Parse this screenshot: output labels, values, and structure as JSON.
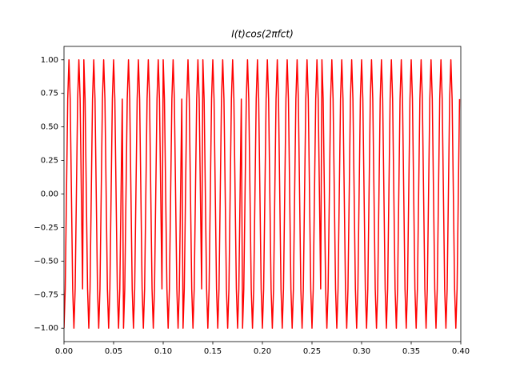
{
  "chart_data": {
    "type": "line",
    "title": "I(t)cos(2πfct)",
    "color": "#ff0000",
    "xlim": [
      0,
      0.4
    ],
    "ylim": [
      -1.1,
      1.1
    ],
    "xticks": [
      {
        "value": 0,
        "label": "0.00"
      },
      {
        "value": 0.05,
        "label": "0.05"
      },
      {
        "value": 0.1,
        "label": "0.10"
      },
      {
        "value": 0.15,
        "label": "0.15"
      },
      {
        "value": 0.2,
        "label": "0.20"
      },
      {
        "value": 0.25,
        "label": "0.25"
      },
      {
        "value": 0.3,
        "label": "0.30"
      },
      {
        "value": 0.35,
        "label": "0.35"
      },
      {
        "value": 0.4,
        "label": "0.40"
      }
    ],
    "yticks": [
      {
        "value": -1,
        "label": "−1.00"
      },
      {
        "value": -0.75,
        "label": "−0.75"
      },
      {
        "value": -0.5,
        "label": "−0.50"
      },
      {
        "value": -0.25,
        "label": "−0.25"
      },
      {
        "value": 0,
        "label": "0.00"
      },
      {
        "value": 0.25,
        "label": "0.25"
      },
      {
        "value": 0.5,
        "label": "0.50"
      },
      {
        "value": 0.75,
        "label": "0.75"
      },
      {
        "value": 1,
        "label": "1.00"
      }
    ],
    "x": [
      0,
      0.00125,
      0.0025,
      0.00375,
      0.005,
      0.00625,
      0.0075,
      0.00875,
      0.01,
      0.01125,
      0.0125,
      0.01375,
      0.015,
      0.01625,
      0.0175,
      0.01875,
      0.02,
      0.02125,
      0.0225,
      0.02375,
      0.025,
      0.02625,
      0.0275,
      0.02875,
      0.03,
      0.03125,
      0.0325,
      0.03375,
      0.035,
      0.03625,
      0.0375,
      0.03875,
      0.04,
      0.04125,
      0.0425,
      0.04375,
      0.045,
      0.04625,
      0.0475,
      0.04875,
      0.05,
      0.05125,
      0.0525,
      0.05375,
      0.055,
      0.05625,
      0.0575,
      0.05875,
      0.06,
      0.06125,
      0.0625,
      0.06375,
      0.065,
      0.06625,
      0.0675,
      0.06875,
      0.07,
      0.07125,
      0.0725,
      0.07375,
      0.075,
      0.07625,
      0.0775,
      0.07875,
      0.08,
      0.08125,
      0.0825,
      0.08375,
      0.085,
      0.08625,
      0.0875,
      0.08875,
      0.09,
      0.09125,
      0.0925,
      0.09375,
      0.095,
      0.09625,
      0.0975,
      0.09875,
      0.1,
      0.10125,
      0.1025,
      0.10375,
      0.105,
      0.10625,
      0.1075,
      0.10875,
      0.11,
      0.11125,
      0.1125,
      0.11375,
      0.115,
      0.11625,
      0.1175,
      0.11875,
      0.12,
      0.12125,
      0.1225,
      0.12375,
      0.125,
      0.12625,
      0.1275,
      0.12875,
      0.13,
      0.13125,
      0.1325,
      0.13375,
      0.135,
      0.13625,
      0.1375,
      0.13875,
      0.14,
      0.14125,
      0.1425,
      0.14375,
      0.145,
      0.14625,
      0.1475,
      0.14875,
      0.15,
      0.15125,
      0.1525,
      0.15375,
      0.155,
      0.15625,
      0.1575,
      0.15875,
      0.16,
      0.16125,
      0.1625,
      0.16375,
      0.165,
      0.16625,
      0.1675,
      0.16875,
      0.17,
      0.17125,
      0.1725,
      0.17375,
      0.175,
      0.17625,
      0.1775,
      0.17875,
      0.18,
      0.18125,
      0.1825,
      0.18375,
      0.185,
      0.18625,
      0.1875,
      0.18875,
      0.19,
      0.19125,
      0.1925,
      0.19375,
      0.195,
      0.19625,
      0.1975,
      0.19875,
      0.2,
      0.20125,
      0.2025,
      0.20375,
      0.205,
      0.20625,
      0.2075,
      0.20875,
      0.21,
      0.21125,
      0.2125,
      0.21375,
      0.215,
      0.21625,
      0.2175,
      0.21875,
      0.22,
      0.22125,
      0.2225,
      0.22375,
      0.225,
      0.22625,
      0.2275,
      0.22875,
      0.23,
      0.23125,
      0.2325,
      0.23375,
      0.235,
      0.23625,
      0.2375,
      0.23875,
      0.24,
      0.24125,
      0.2425,
      0.24375,
      0.245,
      0.24625,
      0.2475,
      0.24875,
      0.25,
      0.25125,
      0.2525,
      0.25375,
      0.255,
      0.25625,
      0.2575,
      0.25875,
      0.26,
      0.26125,
      0.2625,
      0.26375,
      0.265,
      0.26625,
      0.2675,
      0.26875,
      0.27,
      0.27125,
      0.2725,
      0.27375,
      0.275,
      0.27625,
      0.2775,
      0.27875,
      0.28,
      0.28125,
      0.2825,
      0.28375,
      0.285,
      0.28625,
      0.2875,
      0.28875,
      0.29,
      0.29125,
      0.2925,
      0.29375,
      0.295,
      0.29625,
      0.2975,
      0.29875,
      0.3,
      0.30125,
      0.3025,
      0.30375,
      0.305,
      0.30625,
      0.3075,
      0.30875,
      0.31,
      0.31125,
      0.3125,
      0.31375,
      0.315,
      0.31625,
      0.3175,
      0.31875,
      0.32,
      0.32125,
      0.3225,
      0.32375,
      0.325,
      0.32625,
      0.3275,
      0.32875,
      0.33,
      0.33125,
      0.3325,
      0.33375,
      0.335,
      0.33625,
      0.3375,
      0.33875,
      0.34,
      0.34125,
      0.3425,
      0.34375,
      0.345,
      0.34625,
      0.3475,
      0.34875,
      0.35,
      0.35125,
      0.3525,
      0.35375,
      0.355,
      0.35625,
      0.3575,
      0.35875,
      0.36,
      0.36125,
      0.3625,
      0.36375,
      0.365,
      0.36625,
      0.3675,
      0.36875,
      0.37,
      0.37125,
      0.3725,
      0.37375,
      0.375,
      0.37625,
      0.3775,
      0.37875,
      0.38,
      0.38125,
      0.3825,
      0.38375,
      0.385,
      0.38625,
      0.3875,
      0.38875,
      0.39,
      0.39125,
      0.3925,
      0.39375,
      0.395,
      0.39625,
      0.3975,
      0.39875
    ],
    "values": [
      -1,
      -0.707,
      0,
      0.707,
      1,
      0.707,
      0,
      -0.707,
      -1,
      -0.707,
      0,
      0.707,
      1,
      0.707,
      0,
      -0.707,
      1,
      0.707,
      0,
      -0.707,
      -1,
      -0.707,
      0,
      0.707,
      1,
      0.707,
      0,
      -0.707,
      -1,
      -0.707,
      0,
      0.707,
      1,
      0.707,
      0,
      -0.707,
      -1,
      -0.707,
      0,
      0.707,
      1,
      0.707,
      0,
      -0.707,
      -1,
      -0.707,
      0,
      0.707,
      -1,
      -0.707,
      0,
      0.707,
      1,
      0.707,
      0,
      -0.707,
      -1,
      -0.707,
      0,
      0.707,
      1,
      0.707,
      0,
      -0.707,
      -1,
      -0.707,
      0,
      0.707,
      1,
      0.707,
      0,
      -0.707,
      -1,
      -0.707,
      0,
      0.707,
      1,
      0.707,
      0,
      -0.707,
      1,
      0.707,
      0,
      -0.707,
      -1,
      -0.707,
      0,
      0.707,
      1,
      0.707,
      0,
      -0.707,
      -1,
      -0.707,
      0,
      0.707,
      -1,
      -0.707,
      0,
      0.707,
      1,
      0.707,
      0,
      -0.707,
      -1,
      -0.707,
      0,
      0.707,
      1,
      0.707,
      0,
      -0.707,
      1,
      0.707,
      0,
      -0.707,
      -1,
      -0.707,
      0,
      0.707,
      1,
      0.707,
      0,
      -0.707,
      -1,
      -0.707,
      0,
      0.707,
      1,
      0.707,
      0,
      -0.707,
      -1,
      -0.707,
      0,
      0.707,
      1,
      0.707,
      0,
      -0.707,
      -1,
      -0.707,
      0,
      0.707,
      -1,
      -0.707,
      0,
      0.707,
      1,
      0.707,
      0,
      -0.707,
      -1,
      -0.707,
      0,
      0.707,
      1,
      0.707,
      0,
      -0.707,
      -1,
      -0.707,
      0,
      0.707,
      1,
      0.707,
      0,
      -0.707,
      -1,
      -0.707,
      0,
      0.707,
      1,
      0.707,
      0,
      -0.707,
      -1,
      -0.707,
      0,
      0.707,
      1,
      0.707,
      0,
      -0.707,
      -1,
      -0.707,
      0,
      0.707,
      1,
      0.707,
      0,
      -0.707,
      -1,
      -0.707,
      0,
      0.707,
      1,
      0.707,
      0,
      -0.707,
      -1,
      -0.707,
      0,
      0.707,
      1,
      0.707,
      0,
      -0.707,
      1,
      0.707,
      0,
      -0.707,
      -1,
      -0.707,
      0,
      0.707,
      1,
      0.707,
      0,
      -0.707,
      -1,
      -0.707,
      0,
      0.707,
      1,
      0.707,
      0,
      -0.707,
      -1,
      -0.707,
      0,
      0.707,
      1,
      0.707,
      0,
      -0.707,
      -1,
      -0.707,
      0,
      0.707,
      1,
      0.707,
      0,
      -0.707,
      -1,
      -0.707,
      0,
      0.707,
      1,
      0.707,
      0,
      -0.707,
      -1,
      -0.707,
      0,
      0.707,
      1,
      0.707,
      0,
      -0.707,
      -1,
      -0.707,
      0,
      0.707,
      1,
      0.707,
      0,
      -0.707,
      -1,
      -0.707,
      0,
      0.707,
      1,
      0.707,
      0,
      -0.707,
      -1,
      -0.707,
      0,
      0.707,
      1,
      0.707,
      0,
      -0.707,
      -1,
      -0.707,
      0,
      0.707,
      1,
      0.707,
      0,
      -0.707,
      -1,
      -0.707,
      0,
      0.707,
      1,
      0.707,
      0,
      -0.707,
      -1,
      -0.707,
      0,
      0.707,
      1,
      0.707,
      0,
      -0.707,
      -1,
      -0.707,
      0,
      0.707,
      1,
      0.707,
      0,
      -0.707,
      -1,
      -0.707,
      0,
      0.707
    ]
  }
}
